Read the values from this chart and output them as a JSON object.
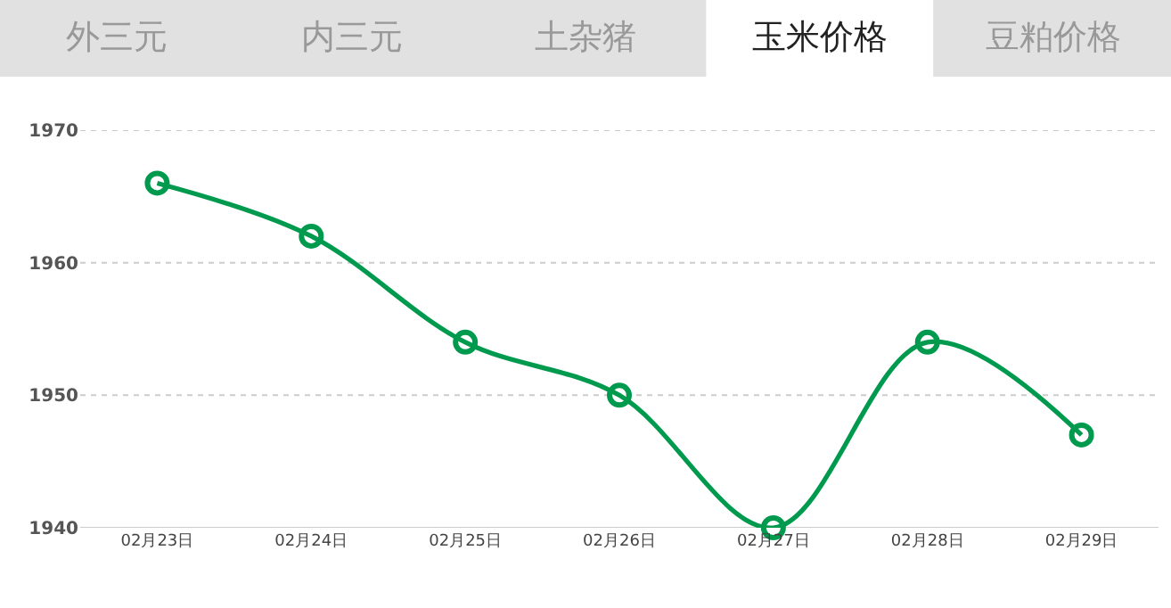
{
  "chart_data": {
    "type": "line",
    "title": "玉米价格",
    "annotations": [
      "外三元",
      "内三元",
      "土杂猪",
      "豆粕价格"
    ],
    "categories": [
      "02月23日",
      "02月24日",
      "02月25日",
      "02月26日",
      "02月27日",
      "02月28日",
      "02月29日"
    ],
    "series": [
      {
        "color": "#009a4e",
        "values": [
          1966,
          1962,
          1954,
          1950,
          1940,
          1954,
          1947
        ]
      }
    ],
    "ylim": [
      1940,
      1970
    ],
    "yticks": [
      1940,
      1950,
      1960,
      1970
    ],
    "grid": "y",
    "marker": "circle",
    "line_style": "solid"
  }
}
